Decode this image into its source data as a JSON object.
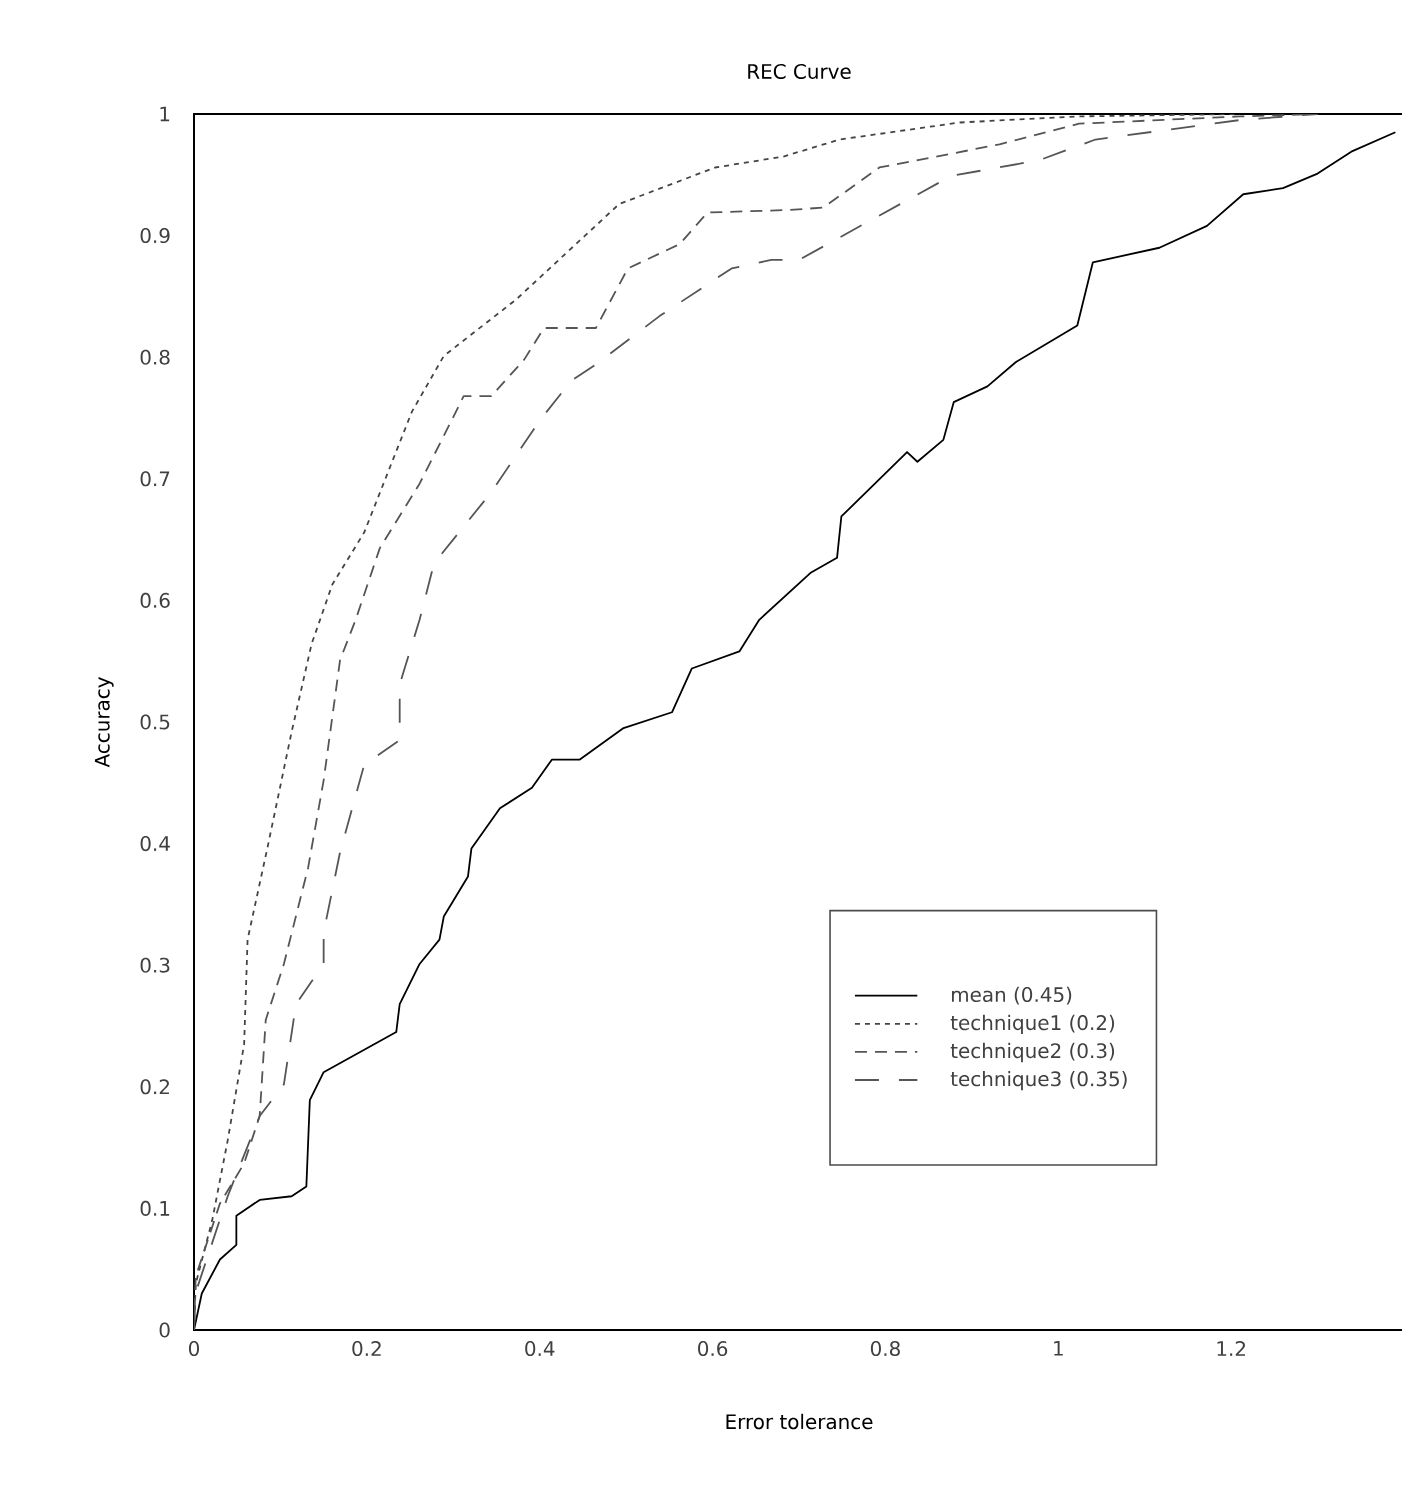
{
  "chart_data": {
    "type": "line",
    "title": "REC Curve",
    "xlabel": "Error tolerance",
    "ylabel": "Accuracy",
    "xlim": [
      0,
      1.4
    ],
    "ylim": [
      0,
      1
    ],
    "xticks": [
      0,
      0.2,
      0.4,
      0.6,
      0.8,
      1,
      1.2
    ],
    "yticks": [
      0,
      0.1,
      0.2,
      0.3,
      0.4,
      0.5,
      0.6,
      0.7,
      0.8,
      0.9,
      1
    ],
    "grid": false,
    "legend": "bottom right",
    "marker": "none",
    "series": [
      {
        "name": "mean (0.45)",
        "color": "#000000",
        "line_style": "solid",
        "x": [
          0,
          0.009,
          0.03,
          0.049,
          0.049,
          0.076,
          0.113,
          0.13,
          0.134,
          0.15,
          0.234,
          0.238,
          0.261,
          0.284,
          0.289,
          0.317,
          0.321,
          0.354,
          0.391,
          0.414,
          0.446,
          0.497,
          0.553,
          0.576,
          0.631,
          0.654,
          0.714,
          0.744,
          0.749,
          0.825,
          0.837,
          0.867,
          0.879,
          0.918,
          0.951,
          1.022,
          1.04,
          1.117,
          1.172,
          1.214,
          1.26,
          1.3,
          1.339,
          1.39
        ],
        "values": [
          0,
          0.03,
          0.058,
          0.07,
          0.094,
          0.107,
          0.11,
          0.118,
          0.189,
          0.212,
          0.245,
          0.268,
          0.301,
          0.321,
          0.34,
          0.373,
          0.396,
          0.429,
          0.446,
          0.469,
          0.469,
          0.495,
          0.508,
          0.544,
          0.558,
          0.584,
          0.623,
          0.635,
          0.669,
          0.722,
          0.714,
          0.732,
          0.763,
          0.776,
          0.796,
          0.826,
          0.878,
          0.89,
          0.908,
          0.934,
          0.939,
          0.951,
          0.969,
          0.985
        ]
      },
      {
        "name": "technique1 (0.2)",
        "color": "#444444",
        "line_style": "dotted",
        "x": [
          0,
          0.002,
          0.021,
          0.039,
          0.058,
          0.062,
          0.086,
          0.113,
          0.136,
          0.16,
          0.197,
          0.252,
          0.289,
          0.372,
          0.492,
          0.603,
          0.682,
          0.747,
          0.886,
          1.024,
          1.21
        ],
        "values": [
          0,
          0.038,
          0.09,
          0.156,
          0.235,
          0.321,
          0.4,
          0.492,
          0.564,
          0.613,
          0.656,
          0.755,
          0.801,
          0.847,
          0.926,
          0.956,
          0.965,
          0.979,
          0.993,
          0.998,
          1
        ]
      },
      {
        "name": "technique2 (0.3)",
        "color": "#555555",
        "line_style": "dashed",
        "x": [
          0,
          0.002,
          0.03,
          0.058,
          0.076,
          0.083,
          0.104,
          0.132,
          0.15,
          0.169,
          0.187,
          0.215,
          0.261,
          0.298,
          0.312,
          0.344,
          0.382,
          0.405,
          0.465,
          0.502,
          0.562,
          0.594,
          0.687,
          0.728,
          0.793,
          0.932,
          1.024,
          1.21,
          1.3
        ],
        "values": [
          0,
          0.044,
          0.104,
          0.137,
          0.176,
          0.255,
          0.301,
          0.38,
          0.452,
          0.551,
          0.584,
          0.643,
          0.696,
          0.748,
          0.768,
          0.768,
          0.798,
          0.824,
          0.824,
          0.873,
          0.893,
          0.919,
          0.921,
          0.923,
          0.956,
          0.975,
          0.992,
          0.998,
          1
        ]
      },
      {
        "name": "technique3 (0.35)",
        "color": "#555555",
        "line_style": "long dashed",
        "x": [
          0,
          0.002,
          0.039,
          0.076,
          0.104,
          0.118,
          0.15,
          0.15,
          0.169,
          0.197,
          0.238,
          0.238,
          0.261,
          0.275,
          0.284,
          0.344,
          0.4,
          0.437,
          0.465,
          0.539,
          0.622,
          0.668,
          0.7,
          0.784,
          0.876,
          0.978,
          1.043,
          1.21,
          1.3
        ],
        "values": [
          0,
          0.031,
          0.11,
          0.176,
          0.202,
          0.268,
          0.301,
          0.327,
          0.393,
          0.465,
          0.485,
          0.531,
          0.584,
          0.623,
          0.636,
          0.689,
          0.748,
          0.781,
          0.794,
          0.834,
          0.873,
          0.88,
          0.88,
          0.913,
          0.949,
          0.962,
          0.979,
          0.995,
          1
        ]
      }
    ]
  }
}
